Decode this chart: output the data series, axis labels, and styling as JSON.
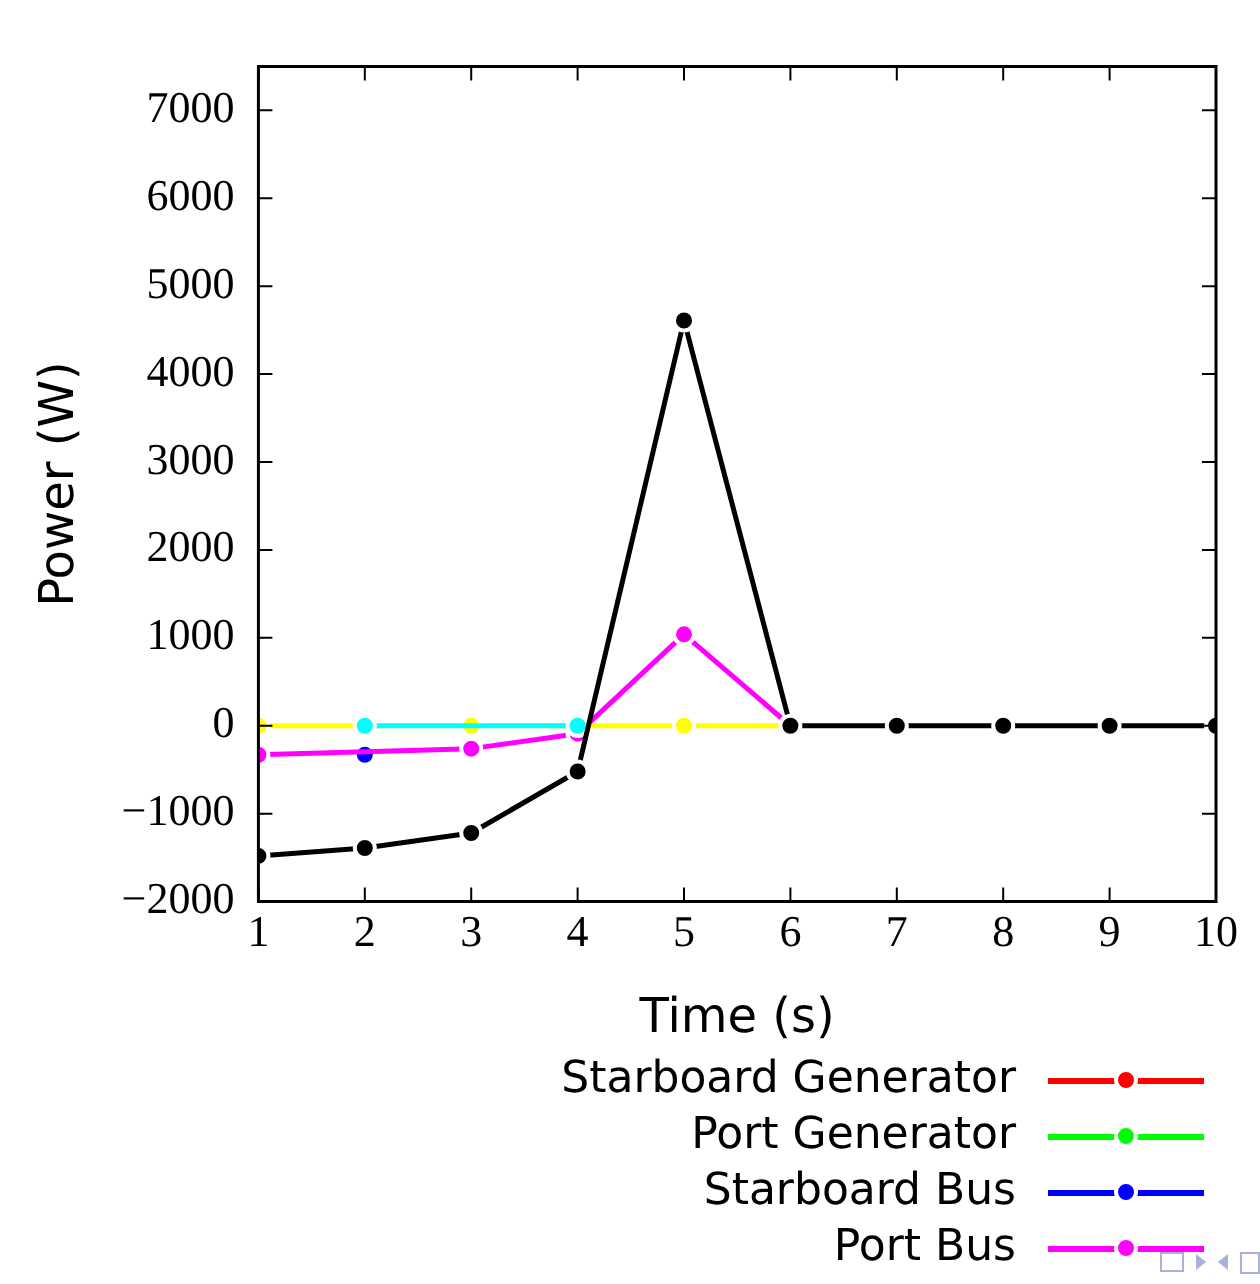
{
  "chart_data": {
    "type": "line",
    "xlabel": "Time (s)",
    "ylabel": "Power (W)",
    "x": [
      1,
      2,
      3,
      4,
      5,
      6,
      7,
      8,
      9,
      10
    ],
    "xlim": [
      1,
      10
    ],
    "xticks": [
      1,
      2,
      3,
      4,
      5,
      6,
      7,
      8,
      9,
      10
    ],
    "ylim": [
      -2000,
      7500
    ],
    "yticks": [
      -2000,
      -1000,
      0,
      1000,
      2000,
      3000,
      4000,
      5000,
      6000,
      7000
    ],
    "grid": false,
    "legend": "bottom",
    "marker": "circle",
    "line_style": "solid",
    "series": [
      {
        "name": "Starboard Generator",
        "color": "#ff0000",
        "values": [
          null,
          null,
          null,
          null,
          null,
          null,
          null,
          null,
          null,
          null
        ]
      },
      {
        "name": "Port Generator",
        "color": "#00ff00",
        "values": [
          null,
          null,
          null,
          null,
          null,
          null,
          null,
          null,
          null,
          null
        ]
      },
      {
        "name": "Starboard Bus",
        "color": "#0000ff",
        "values": [
          null,
          -330,
          null,
          null,
          null,
          null,
          null,
          null,
          null,
          null
        ]
      },
      {
        "name": "Port Bus",
        "color": "#ff00ff",
        "values": [
          -330,
          null,
          -260,
          -90,
          1040,
          0,
          null,
          null,
          null,
          null
        ]
      },
      {
        "color": "#ffff00",
        "values": [
          0,
          0,
          0,
          0,
          0,
          0,
          null,
          null,
          null,
          null
        ]
      },
      {
        "color": "#00ffff",
        "values": [
          null,
          0,
          null,
          0,
          null,
          null,
          null,
          null,
          null,
          null
        ]
      },
      {
        "color": "#000000",
        "values": [
          -1480,
          -1390,
          -1220,
          -520,
          4610,
          0,
          0,
          0,
          0,
          0
        ]
      }
    ]
  }
}
